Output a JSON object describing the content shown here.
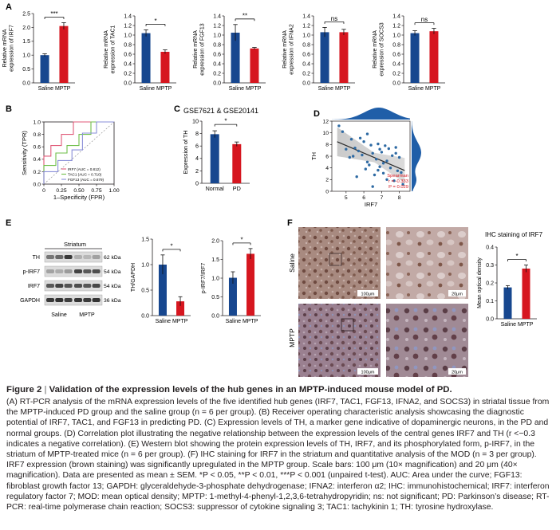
{
  "panel_letters": {
    "A": "A",
    "B": "B",
    "C": "C",
    "D": "D",
    "E": "E",
    "F": "F"
  },
  "colors": {
    "saline": "#17478f",
    "mptp": "#d6161f",
    "irf7_roc": "#e05a78",
    "tac1_roc": "#6fbf4a",
    "fgf13_roc": "#8a8fd8",
    "regression": "#2b2b2b",
    "dots": "#2e6aa3",
    "density": "#1f5ea8",
    "axis": "#231f20"
  },
  "panel_a": {
    "charts": [
      {
        "ylabel_lines": [
          "Relative mRNA",
          "expression of IRF7"
        ],
        "yticks": [
          "0.0",
          "0.5",
          "1.0",
          "1.5",
          "2.0",
          "2.5"
        ],
        "sig": "***",
        "groups": [
          "Saline",
          "MPTP"
        ]
      },
      {
        "ylabel_lines": [
          "Relative mRNA",
          "expression of TAC1"
        ],
        "yticks": [
          "0.0",
          "0.2",
          "0.4",
          "0.6",
          "0.8",
          "1.0",
          "1.2",
          "1.4"
        ],
        "sig": "*",
        "groups": [
          "Saline",
          "MPTP"
        ]
      },
      {
        "ylabel_lines": [
          "Relative mRNA",
          "expression of FGF13"
        ],
        "yticks": [
          "0.0",
          "0.2",
          "0.4",
          "0.6",
          "0.8",
          "1.0",
          "1.2",
          "1.4"
        ],
        "sig": "**",
        "groups": [
          "Saline",
          "MPTP"
        ]
      },
      {
        "ylabel_lines": [
          "Relative mRNA",
          "expression of IFNA2"
        ],
        "yticks": [
          "0.0",
          "0.2",
          "0.4",
          "0.6",
          "0.8",
          "1.0",
          "1.2",
          "1.4"
        ],
        "sig": "ns",
        "groups": [
          "Saline",
          "MPTP"
        ]
      },
      {
        "ylabel_lines": [
          "Relative mRNA",
          "expression of SOCS3"
        ],
        "yticks": [
          "0.0",
          "0.2",
          "0.4",
          "0.6",
          "0.8",
          "1.0",
          "1.2",
          "1.4"
        ],
        "sig": "ns",
        "groups": [
          "Saline",
          "MPTP"
        ]
      }
    ]
  },
  "panel_b": {
    "ylabel": "Sensitivity (TPR)",
    "xlabel": "1–Specificity (FPR)",
    "yticks": [
      "0.0",
      "0.2",
      "0.4",
      "0.6",
      "0.8",
      "1.0"
    ],
    "xticks": [
      "0",
      "0.25",
      "0.50",
      "0.75",
      "1.00"
    ],
    "legend": [
      "IRF7 (AUC = 0.812)",
      "TAC1 (AUC = 0.710)",
      "FGF13 (AUC = 0.679)"
    ]
  },
  "panel_c": {
    "title": "GSE7621 & GSE20141",
    "ylabel": "Expression of TH",
    "yticks": [
      "0",
      "2",
      "4",
      "6",
      "8",
      "10"
    ],
    "sig": "*",
    "groups": [
      "Normal",
      "PD"
    ]
  },
  "panel_d": {
    "ylabel": "TH",
    "xlabel": "IRF7",
    "yticks": [
      "0",
      "2",
      "4",
      "6",
      "8",
      "10",
      "12"
    ],
    "xticks": [
      "5",
      "6",
      "7",
      "8"
    ],
    "stat_lines": [
      "Spearman",
      "r = -0.333",
      "P = 0.029"
    ]
  },
  "panel_e": {
    "blot_title": "Striatum",
    "rows": [
      "TH",
      "p-IRF7",
      "IRF7",
      "GAPDH"
    ],
    "sizes": [
      "62 kDa",
      "54 kDa",
      "54 kDa",
      "36 kDa"
    ],
    "lanes": [
      "Saline",
      "MPTP"
    ],
    "chart1": {
      "ylabel": "TH/GAPDH",
      "yticks": [
        "0.0",
        "0.5",
        "1.0",
        "1.5"
      ],
      "sig": "*",
      "groups": [
        "Saline",
        "MPTP"
      ]
    },
    "chart2": {
      "ylabel": "p-IRF7/IRF7",
      "yticks": [
        "0.0",
        "0.5",
        "1.0",
        "1.5",
        "2.0"
      ],
      "sig": "*",
      "groups": [
        "Saline",
        "MPTP"
      ]
    }
  },
  "panel_f": {
    "row_labels": [
      "Saline",
      "MPTP"
    ],
    "scale_labels": [
      "100μm",
      "20μm",
      "100μm",
      "20μm"
    ],
    "chart": {
      "title": "IHC staining of IRF7",
      "ylabel": "Mean optical density",
      "yticks": [
        "0.0",
        "0.1",
        "0.2",
        "0.3",
        "0.4"
      ],
      "sig": "*",
      "groups": [
        "Saline",
        "MPTP"
      ]
    }
  },
  "chart_data": [
    {
      "type": "bar",
      "categories": [
        "Saline",
        "MPTP"
      ],
      "values": [
        1.0,
        2.05
      ],
      "errors": [
        0.05,
        0.12
      ],
      "ylabel": "Relative mRNA expression of IRF7",
      "ylim": [
        0,
        2.5
      ],
      "significance": "***"
    },
    {
      "type": "bar",
      "categories": [
        "Saline",
        "MPTP"
      ],
      "values": [
        1.04,
        0.65
      ],
      "errors": [
        0.07,
        0.04
      ],
      "ylabel": "Relative mRNA expression of TAC1",
      "ylim": [
        0,
        1.4
      ],
      "significance": "*"
    },
    {
      "type": "bar",
      "categories": [
        "Saline",
        "MPTP"
      ],
      "values": [
        1.05,
        0.72
      ],
      "errors": [
        0.17,
        0.02
      ],
      "ylabel": "Relative mRNA expression of FGF13",
      "ylim": [
        0,
        1.4
      ],
      "significance": "**"
    },
    {
      "type": "bar",
      "categories": [
        "Saline",
        "MPTP"
      ],
      "values": [
        1.06,
        1.06
      ],
      "errors": [
        0.1,
        0.06
      ],
      "ylabel": "Relative mRNA expression of IFNA2",
      "ylim": [
        0,
        1.4
      ],
      "significance": "ns"
    },
    {
      "type": "bar",
      "categories": [
        "Saline",
        "MPTP"
      ],
      "values": [
        1.04,
        1.08
      ],
      "errors": [
        0.05,
        0.06
      ],
      "ylabel": "Relative mRNA expression of SOCS3",
      "ylim": [
        0,
        1.4
      ],
      "significance": "ns"
    },
    {
      "type": "line",
      "xlabel": "1–Specificity (FPR)",
      "ylabel": "Sensitivity (TPR)",
      "xlim": [
        0,
        1
      ],
      "ylim": [
        0,
        1
      ],
      "series": [
        {
          "name": "IRF7 (AUC = 0.812)",
          "x": [
            0,
            0,
            0.1,
            0.1,
            0.25,
            0.25,
            0.42,
            0.42,
            0.58,
            0.58,
            1.0
          ],
          "y": [
            0,
            0.45,
            0.45,
            0.62,
            0.62,
            0.8,
            0.8,
            1.0,
            1.0,
            1.0,
            1.0
          ]
        },
        {
          "name": "TAC1 (AUC = 0.710)",
          "x": [
            0,
            0,
            0.17,
            0.17,
            0.33,
            0.33,
            0.5,
            0.5,
            0.67,
            0.67,
            1.0
          ],
          "y": [
            0,
            0.3,
            0.3,
            0.5,
            0.5,
            0.62,
            0.62,
            0.8,
            0.8,
            1.0,
            1.0
          ]
        },
        {
          "name": "FGF13 (AUC = 0.679)",
          "x": [
            0,
            0,
            0.2,
            0.2,
            0.4,
            0.4,
            0.55,
            0.55,
            0.75,
            0.75,
            1.0
          ],
          "y": [
            0,
            0.2,
            0.2,
            0.38,
            0.38,
            0.55,
            0.55,
            0.82,
            0.82,
            1.0,
            1.0
          ]
        }
      ]
    },
    {
      "type": "bar",
      "title": "GSE7621 & GSE20141",
      "categories": [
        "Normal",
        "PD"
      ],
      "values": [
        7.9,
        6.3
      ],
      "errors": [
        0.55,
        0.35
      ],
      "ylabel": "Expression of TH",
      "ylim": [
        0,
        10
      ],
      "significance": "*"
    },
    {
      "type": "scatter",
      "xlabel": "IRF7",
      "ylabel": "TH",
      "xlim": [
        4.2,
        8.6
      ],
      "ylim": [
        0,
        12
      ],
      "annotation": "Spearman r = -0.333, P = 0.029",
      "x": [
        4.6,
        4.8,
        5.0,
        5.2,
        5.3,
        5.5,
        5.6,
        5.8,
        5.9,
        6.0,
        6.1,
        6.2,
        6.3,
        6.4,
        6.5,
        6.6,
        6.7,
        6.8,
        6.9,
        7.0,
        7.1,
        7.2,
        7.3,
        7.4,
        7.5,
        7.6,
        7.7,
        7.8,
        7.9,
        8.0,
        8.1,
        8.2,
        6.2,
        5.7,
        6.9,
        7.3,
        6.5,
        7.8,
        5.4,
        7.1,
        6.8
      ],
      "y": [
        11.2,
        10.2,
        7.2,
        5.8,
        8.9,
        7.4,
        2.5,
        9.1,
        6.2,
        8.5,
        3.8,
        9.8,
        4.5,
        7.9,
        6.5,
        2.8,
        5.5,
        8.1,
        4.2,
        6.7,
        3.1,
        7.8,
        5.2,
        7.3,
        4.0,
        6.1,
        1.8,
        7.5,
        3.5,
        5.8,
        3.2,
        1.2,
        5.0,
        6.9,
        7.2,
        2.0,
        0.8,
        6.5,
        6.0,
        4.8,
        3.6
      ]
    },
    {
      "type": "bar",
      "categories": [
        "Saline",
        "MPTP"
      ],
      "values": [
        1.0,
        0.28
      ],
      "errors": [
        0.19,
        0.09
      ],
      "ylabel": "TH/GAPDH",
      "ylim": [
        0,
        1.5
      ],
      "significance": "*"
    },
    {
      "type": "bar",
      "categories": [
        "Saline",
        "MPTP"
      ],
      "values": [
        1.01,
        1.65
      ],
      "errors": [
        0.16,
        0.14
      ],
      "ylabel": "p-IRF7/IRF7",
      "ylim": [
        0,
        2.0
      ],
      "significance": "*"
    },
    {
      "type": "bar",
      "title": "IHC staining of IRF7",
      "categories": [
        "Saline",
        "MPTP"
      ],
      "values": [
        0.175,
        0.28
      ],
      "errors": [
        0.01,
        0.02
      ],
      "ylabel": "Mean optical density",
      "ylim": [
        0,
        0.4
      ],
      "significance": "*"
    }
  ],
  "caption": {
    "title_prefix": "Figure 2",
    "separator": "|",
    "title": "Validation of the expression levels of the hub genes in an MPTP-induced mouse model of PD.",
    "body": "(A) RT-PCR analysis of the mRNA expression levels of the five identified hub genes (IRF7, TAC1, FGF13, IFNA2, and SOCS3) in striatal tissue from the MPTP-induced PD group and the saline group (n = 6 per group). (B) Receiver operating characteristic analysis showcasing the diagnostic potential of IRF7, TAC1, and FGF13 in predicting PD. (C) Expression levels of TH, a marker gene indicative of dopaminergic neurons, in the PD and normal groups. (D) Correlation plot illustrating the negative relationship between the expression levels of the central genes IRF7 and TH (r <−0.3 indicates a negative correlation). (E) Western blot showing the protein expression levels of TH, IRF7, and its phosphorylated form, p-IRF7, in the striatum of MPTP-treated mice (n = 6 per group). (F) IHC staining for IRF7 in the striatum and quantitative analysis of the MOD (n = 3 per group). IRF7 expression (brown staining) was significantly upregulated in the MPTP group. Scale bars: 100 μm (10× magnification) and 20 μm (40× magnification). Data are presented as mean ± SEM. *P < 0.05, **P < 0.01, ***P < 0.001 (unpaired t-test). AUC: Area under the curve; FGF13: fibroblast growth factor 13; GAPDH: glyceraldehyde-3-phosphate dehydrogenase; IFNA2: interferon α2; IHC: immunohistochemical; IRF7: interferon regulatory factor 7; MOD: mean optical density; MPTP: 1-methyl-4-phenyl-1,2,3,6-tetrahydropyridin; ns: not significant; PD: Parkinson’s disease; RT-PCR: real-time polymerase chain reaction; SOCS3: suppressor of cytokine signaling 3; TAC1: tachykinin 1; TH: tyrosine hydroxylase."
  }
}
